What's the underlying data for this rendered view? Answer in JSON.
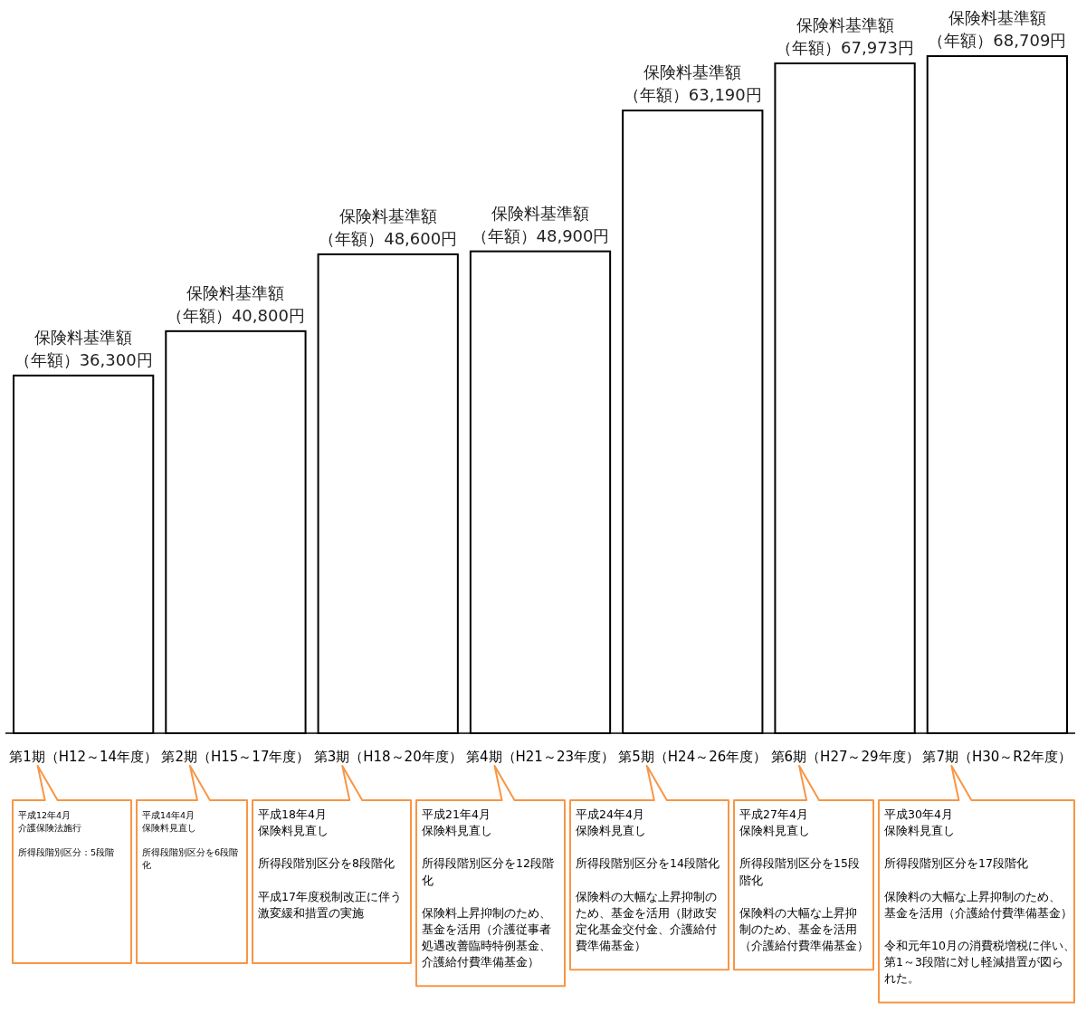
{
  "chart_data": {
    "type": "bar",
    "color": "#ffffff",
    "categories": [
      "第1期（H12～14年度）",
      "第2期（H15～17年度）",
      "第3期（H18～20年度）",
      "第4期（H21～23年度）",
      "第5期（H24～26年度）",
      "第6期（H27～29年度）",
      "第7期（H30～R2年度）"
    ],
    "values": [
      36300,
      40800,
      48600,
      48900,
      63190,
      67973,
      68709
    ],
    "value_labels": [
      "保険料基準額（年額）36,300円",
      "保険料基準額（年額）40,800円",
      "保険料基準額（年額）48,600円",
      "保険料基準額（年額）48,900円",
      "保険料基準額（年額）63,190円",
      "保険料基準額（年額）67,973円",
      "保険料基準額（年額）68,709円"
    ],
    "annotations": [
      "平成12年4月",
      "介護保険法施行",
      "所得段階別区分：5段階",
      "平成14年4月",
      "保険料見直し",
      "所得段階別区分を6段階化",
      "平成18年4月",
      "保険料見直し",
      "所得段階別区分を8段階化",
      "平成17年度税制改正に伴う激変緩和措置の実施",
      "平成21年4月",
      "保険料見直し",
      "所得段階別区分を12段階化",
      "保険料上昇抑制のため、基金を活用（介護従事者処遇改善臨時特例基金、介護給付費準備基金）",
      "平成24年4月",
      "保険料見直し",
      "所得段階別区分を14段階化",
      "保険料の大幅な上昇抑制のため、基金を活用（財政安定化基金交付金、介護給付費準備基金）",
      "平成27年4月",
      "保険料見直し",
      "所得段階別区分を15段階化",
      "保険料の大幅な上昇抑制のため、基金を活用（介護給付費準備基金）",
      "平成30年4月",
      "保険料見直し",
      "所得段階別区分を17段階化",
      "保険料の大幅な上昇抑制のため、基金を活用（介護給付費準備基金）",
      "令和元年10月の消費税増税に伴い、第1～3段階に対し軽減措置が図られた。"
    ]
  }
}
